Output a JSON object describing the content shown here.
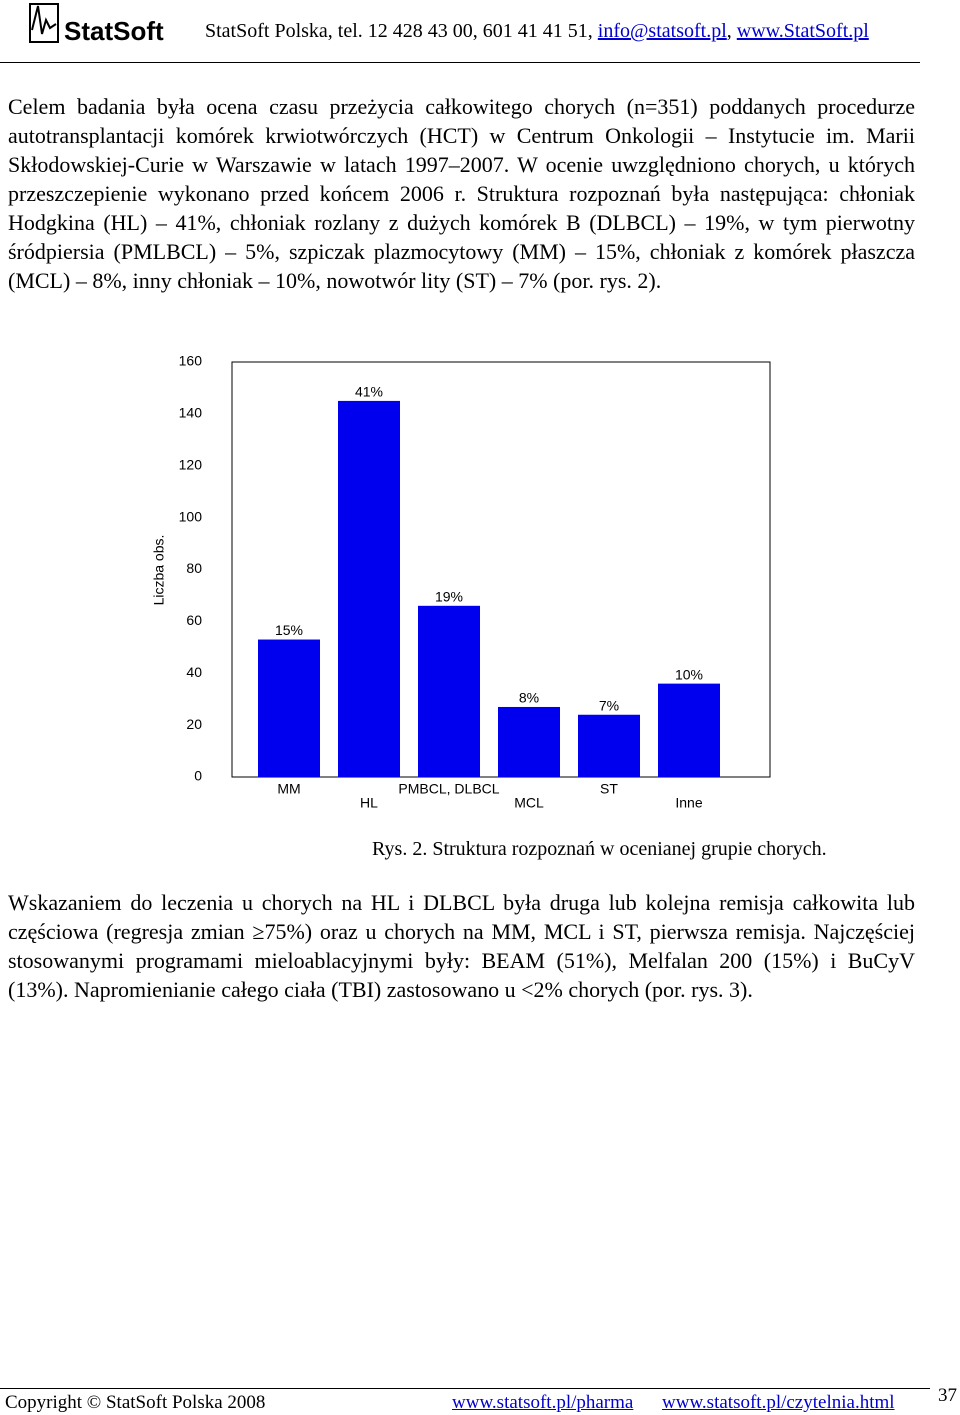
{
  "header": {
    "logo": "StatSoft",
    "contact": "StatSoft Polska, tel. 12 428 43 00, 601 41 41 51,",
    "email": "info@statsoft.pl",
    "separator": ",",
    "website": "www.StatSoft.pl"
  },
  "paragraphs": [
    "Celem badania była ocena czasu przeżycia całkowitego chorych (n=351) poddanych procedurze autotransplantacji komórek krwiotwórczych (HCT) w Centrum Onkologii – Instytucie im. Marii Skłodowskiej-Curie w Warszawie w latach 1997–2007. W ocenie uwzględniono chorych, u których przeszczepienie wykonano przed końcem 2006 r. Struktura rozpoznań była następująca: chłoniak Hodgkina (HL) – 41%, chłoniak rozlany z dużych komórek B (DLBCL) – 19%, w tym pierwotny śródpiersia (PMLBCL) – 5%, szpiczak plazmocytowy (MM) – 15%, chłoniak z komórek płaszcza (MCL) – 8%, inny chłoniak – 10%, nowotwór lity (ST) – 7% (por. rys. 2).",
    "Wskazaniem do leczenia u chorych na HL i DLBCL była druga lub kolejna remisja całkowita lub częściowa (regresja zmian ≥75%) oraz u chorych na MM, MCL i ST, pierwsza remisja. Najczęściej stosowanymi programami mieloablacyjnymi były: BEAM (51%), Melfalan 200 (15%) i BuCyV (13%). Napromienianie całego ciała (TBI) zastosowano u <2% chorych (por. rys. 3)."
  ],
  "figure": {
    "chart": {
      "type": "bar",
      "y_label": "Liczba obs.",
      "categories": [
        "MM",
        "HL",
        "PMBCL, DLBCL",
        "MCL",
        "ST",
        "Inne"
      ],
      "values": [
        53,
        145,
        66,
        27,
        24,
        36
      ],
      "value_labels": [
        "15%",
        "41%",
        "19%",
        "8%",
        "7%",
        "10%"
      ],
      "color": "#0000ee",
      "ylim": [
        0,
        160
      ],
      "yticks": [
        0,
        20,
        40,
        60,
        80,
        100,
        120,
        140,
        160
      ]
    },
    "caption": "Rys. 2. Struktura rozpoznań w ocenianej grupie chorych."
  },
  "footer": {
    "copyright": "Copyright © StatSoft Polska 2008",
    "links": [
      "www.statsoft.pl/pharma",
      "www.statsoft.pl/czytelnia.html"
    ],
    "page": "37"
  }
}
